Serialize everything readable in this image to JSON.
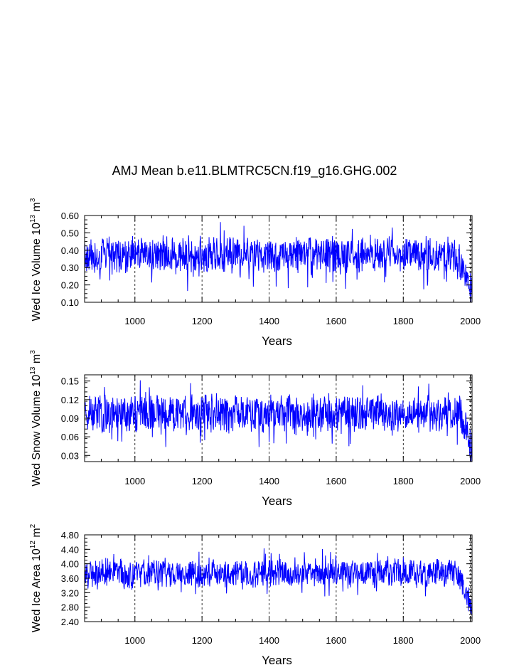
{
  "title": "AMJ Mean b.e11.BLMTRC5CN.f19_g16.GHG.002",
  "chart_data": [
    {
      "type": "line",
      "panel": "ice-volume",
      "ylabel_parts": [
        "Wed Ice Volume 10",
        "13",
        " m",
        "3"
      ],
      "xlabel": "Years",
      "xlim": [
        850,
        2005
      ],
      "ylim": [
        0.1,
        0.6
      ],
      "xticks": [
        1000,
        1200,
        1400,
        1600,
        1800,
        2000
      ],
      "xtick_labels": [
        "1000",
        "1200",
        "1400",
        "1600",
        "1800",
        "2000"
      ],
      "yticks": [
        0.1,
        0.2,
        0.3,
        0.4,
        0.5,
        0.6
      ],
      "ytick_labels": [
        "0.10",
        "0.20",
        "0.30",
        "0.40",
        "0.50",
        "0.60"
      ],
      "vlines": [
        1000,
        1200,
        1400,
        1600,
        1800,
        2000
      ],
      "series": [
        {
          "name": "Wed Ice Volume",
          "color": "#0000ff",
          "start": 850,
          "end": 2005,
          "mean": 0.37,
          "amplitude": 0.11,
          "trend_start": 1965,
          "trend_end_value": 0.19,
          "seed": 11
        }
      ]
    },
    {
      "type": "line",
      "panel": "snow-volume",
      "ylabel_parts": [
        "Wed Snow Volume 10",
        "13",
        " m",
        "3"
      ],
      "xlabel": "Years",
      "xlim": [
        850,
        2005
      ],
      "ylim": [
        0.02,
        0.16
      ],
      "xticks": [
        1000,
        1200,
        1400,
        1600,
        1800,
        2000
      ],
      "xtick_labels": [
        "1000",
        "1200",
        "1400",
        "1600",
        "1800",
        "2000"
      ],
      "yticks": [
        0.03,
        0.06,
        0.09,
        0.12,
        0.15
      ],
      "ytick_labels": [
        "0.03",
        "0.06",
        "0.09",
        "0.12",
        "0.15"
      ],
      "vlines": [
        1000,
        1200,
        1400,
        1600,
        1800,
        2000
      ],
      "series": [
        {
          "name": "Wed Snow Volume",
          "color": "#0000ff",
          "start": 850,
          "end": 2005,
          "mean": 0.098,
          "amplitude": 0.032,
          "trend_start": 1965,
          "trend_end_value": 0.045,
          "seed": 23
        }
      ]
    },
    {
      "type": "line",
      "panel": "ice-area",
      "ylabel_parts": [
        "Wed Ice Area 10",
        "12",
        " m",
        "2"
      ],
      "xlabel": "Years",
      "xlim": [
        850,
        2005
      ],
      "ylim": [
        2.4,
        4.8
      ],
      "xticks": [
        1000,
        1200,
        1400,
        1600,
        1800,
        2000
      ],
      "xtick_labels": [
        "1000",
        "1200",
        "1400",
        "1600",
        "1800",
        "2000"
      ],
      "yticks": [
        2.4,
        2.8,
        3.2,
        3.6,
        4.0,
        4.4,
        4.8
      ],
      "ytick_labels": [
        "2.40",
        "2.80",
        "3.20",
        "3.60",
        "4.00",
        "4.40",
        "4.80"
      ],
      "vlines": [
        1000,
        1200,
        1400,
        1600,
        1800,
        2000
      ],
      "series": [
        {
          "name": "Wed Ice Area",
          "color": "#0000ff",
          "start": 850,
          "end": 2005,
          "mean": 3.74,
          "amplitude": 0.42,
          "trend_start": 1965,
          "trend_end_value": 2.7,
          "seed": 37
        }
      ]
    }
  ]
}
